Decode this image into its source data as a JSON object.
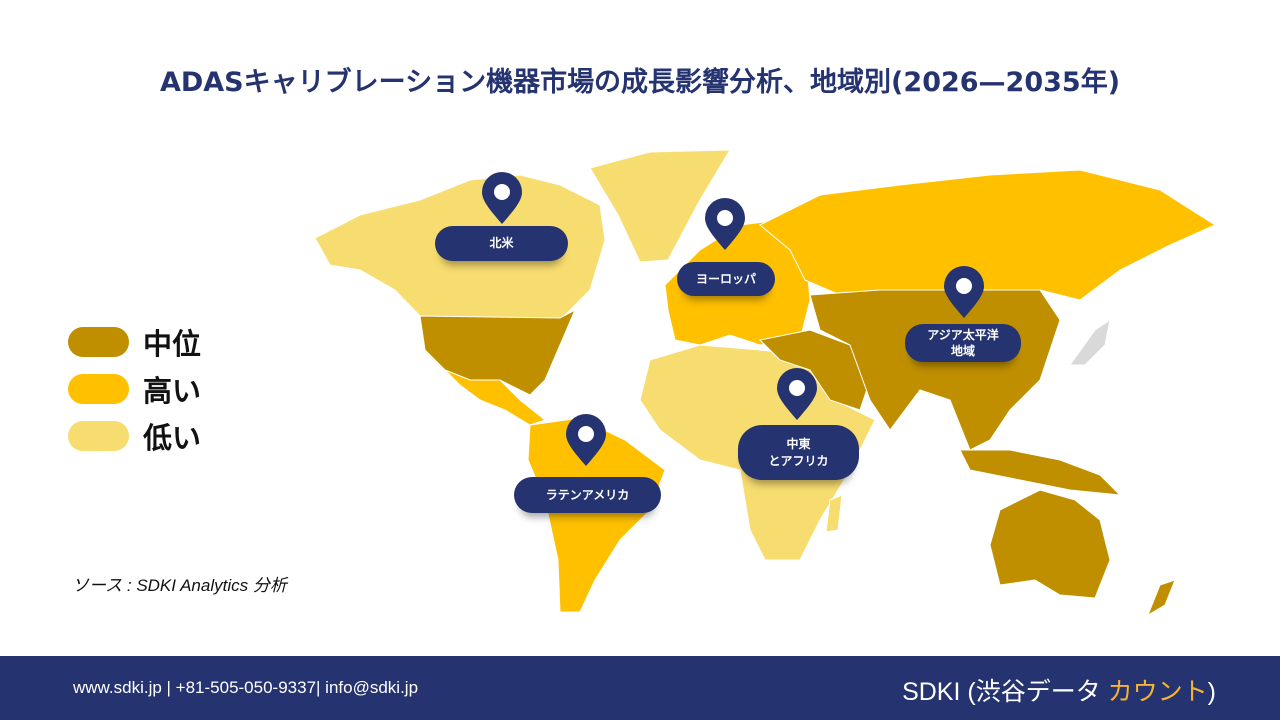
{
  "title": "ADASキャリブレーション機器市場の成長影響分析、地域別(2026—2035年)",
  "legend": [
    {
      "label": "中位",
      "color": "#BF8F00"
    },
    {
      "label": "高い",
      "color": "#FFC000"
    },
    {
      "label": "低い",
      "color": "#F7DC6F"
    }
  ],
  "regions": {
    "north_america": {
      "label": "北米",
      "level": "中位"
    },
    "europe": {
      "label": "ヨーロッパ",
      "level": "高い"
    },
    "asia_pacific": {
      "label": "アジア太平洋\n地域",
      "level": "中位"
    },
    "mea": {
      "label": "中東\nとアフリカ",
      "level": "低い"
    },
    "latin_america": {
      "label": "ラテンアメリカ",
      "level": "高い"
    }
  },
  "source": "ソース : SDKI Analytics 分析",
  "footer": {
    "contact": "www.sdki.jp | +81-505-050-9337| info@sdki.jp",
    "brand_main": "SDKI (渋谷データ ",
    "brand_accent": "カウント",
    "brand_close": ")"
  },
  "colors": {
    "navy": "#253370",
    "accent": "#F5B335"
  }
}
